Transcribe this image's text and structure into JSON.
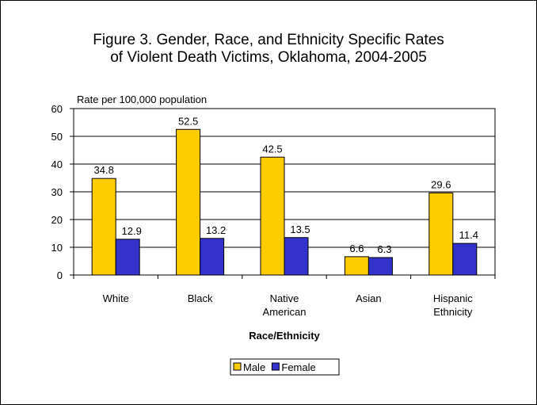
{
  "chart_data": {
    "type": "bar",
    "title_lines": [
      "Figure 3. Gender, Race, and Ethnicity Specific Rates",
      "of Violent Death Victims, Oklahoma, 2004-2005"
    ],
    "ylabel": "Rate per 100,000 population",
    "xlabel": "Race/Ethnicity",
    "ylim": [
      0,
      60
    ],
    "yticks": [
      0,
      10,
      20,
      30,
      40,
      50,
      60
    ],
    "grid": true,
    "legend_position": "bottom",
    "categories": [
      [
        "White"
      ],
      [
        "Black"
      ],
      [
        "Native",
        "American"
      ],
      [
        "Asian"
      ],
      [
        "Hispanic",
        "Ethnicity"
      ]
    ],
    "series": [
      {
        "name": "Male",
        "color": "#FFCC00",
        "values": [
          34.8,
          52.5,
          42.5,
          6.6,
          29.6
        ]
      },
      {
        "name": "Female",
        "color": "#3333CC",
        "values": [
          12.9,
          13.2,
          13.5,
          6.3,
          11.4
        ]
      }
    ]
  }
}
